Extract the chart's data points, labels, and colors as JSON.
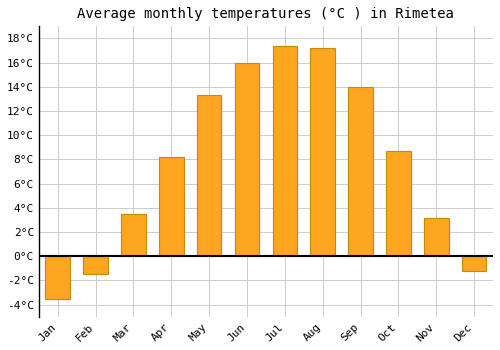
{
  "title": "Average monthly temperatures (°C ) in Rimetea",
  "months": [
    "Jan",
    "Feb",
    "Mar",
    "Apr",
    "May",
    "Jun",
    "Jul",
    "Aug",
    "Sep",
    "Oct",
    "Nov",
    "Dec"
  ],
  "values": [
    -3.5,
    -1.5,
    3.5,
    8.2,
    13.3,
    16.0,
    17.4,
    17.2,
    14.0,
    8.7,
    3.2,
    -1.2
  ],
  "bar_color": "#FFA520",
  "bar_edge_color": "#C8880A",
  "background_color": "#FFFFFF",
  "plot_bg_color": "#FFFFFF",
  "grid_color": "#CCCCCC",
  "ylim": [
    -5,
    19
  ],
  "yticks": [
    -4,
    -2,
    0,
    2,
    4,
    6,
    8,
    10,
    12,
    14,
    16,
    18
  ],
  "ytick_labels": [
    "-4°C",
    "-2°C",
    "0°C",
    "2°C",
    "4°C",
    "6°C",
    "8°C",
    "10°C",
    "12°C",
    "14°C",
    "16°C",
    "18°C"
  ],
  "title_fontsize": 10,
  "tick_fontsize": 8,
  "font_family": "monospace"
}
